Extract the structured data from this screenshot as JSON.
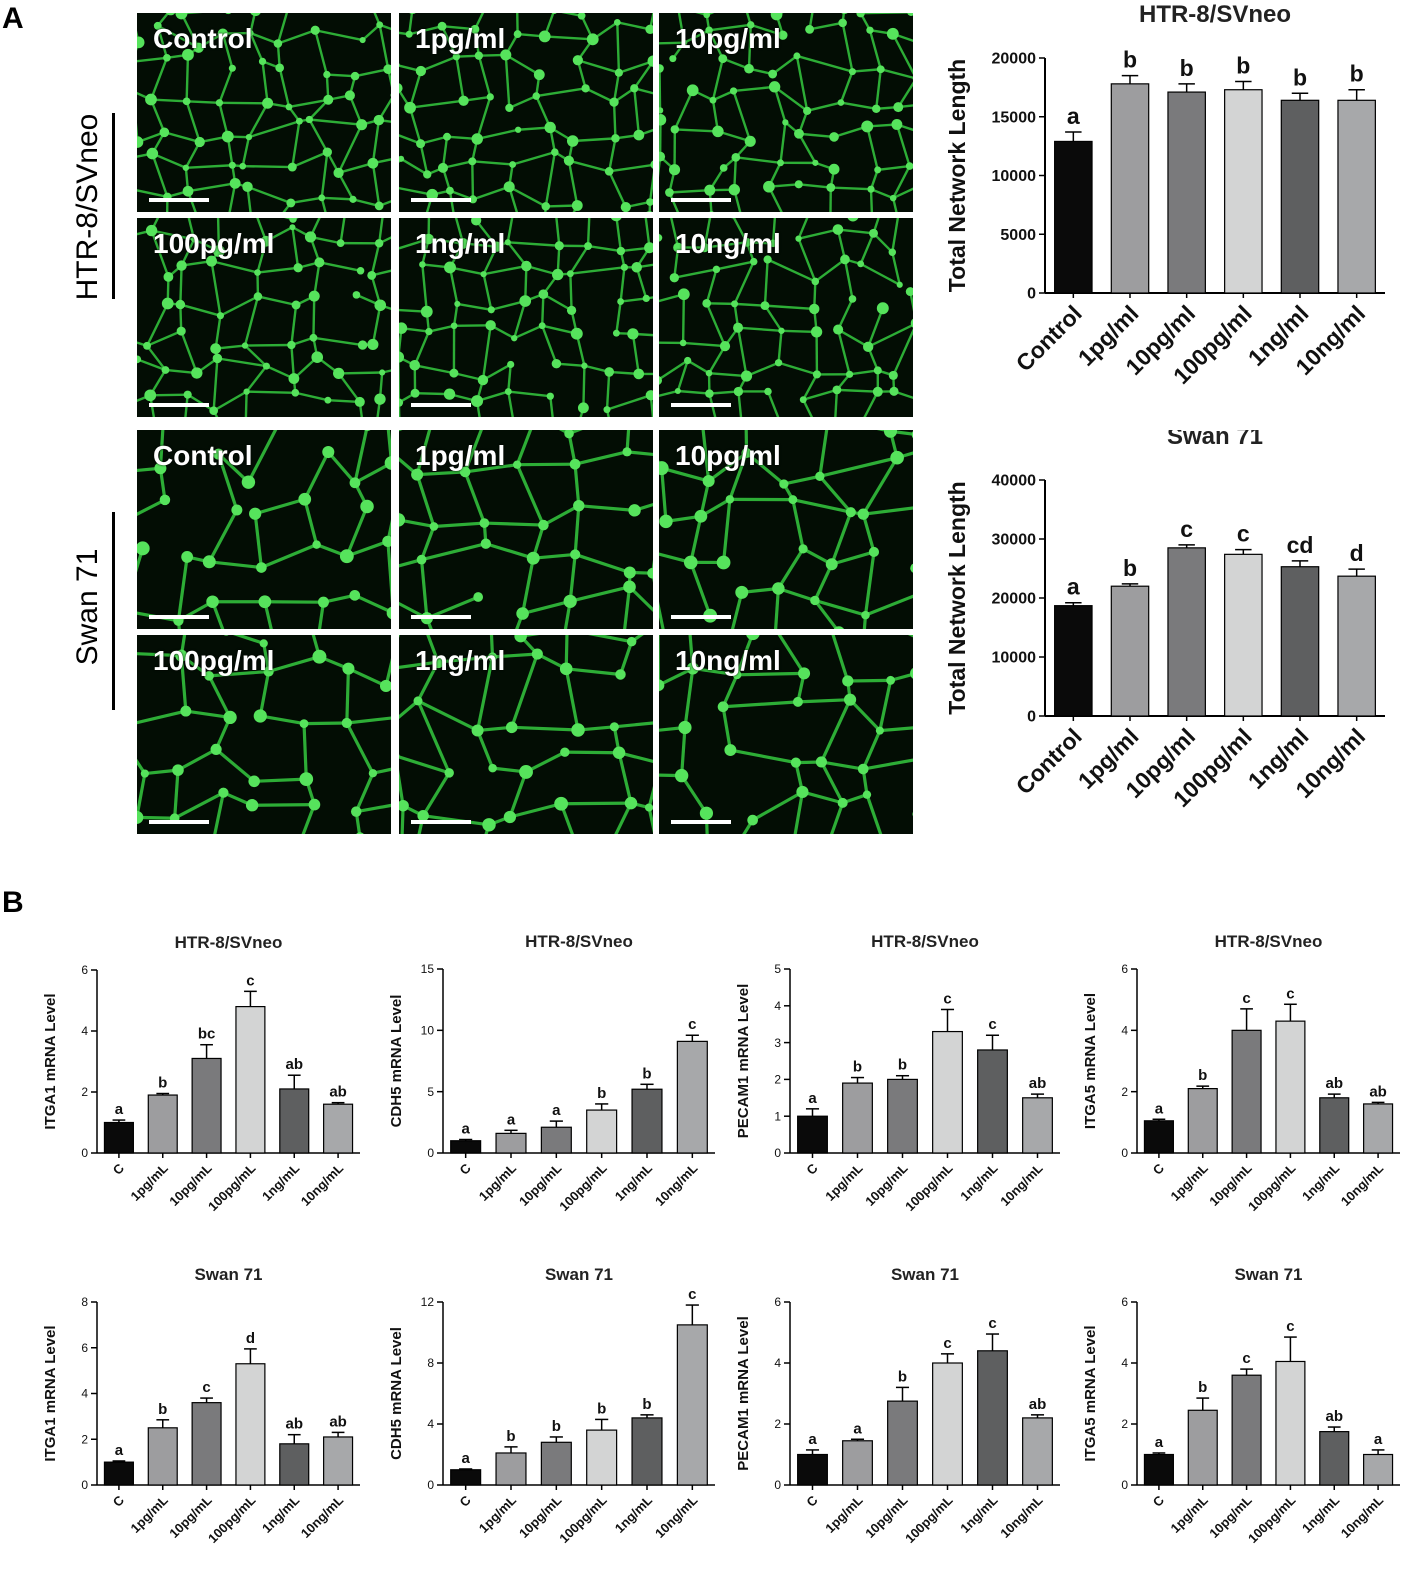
{
  "panels": {
    "a": "A",
    "b": "B"
  },
  "row_labels": {
    "htr": "HTR-8/SVneo",
    "swan": "Swan 71"
  },
  "micrographs": {
    "htr_row1": [
      "Control",
      "1pg/ml",
      "10pg/ml"
    ],
    "htr_row2": [
      "100pg/ml",
      "1ng/ml",
      "10ng/ml"
    ],
    "swan_row1": [
      "Control",
      "1pg/ml",
      "10pg/ml"
    ],
    "swan_row2": [
      "100pg/ml",
      "1ng/ml",
      "10ng/ml"
    ]
  },
  "colors": [
    "#0a0a0a",
    "#9d9d9f",
    "#7a7a7c",
    "#d3d4d4",
    "#5e5f60",
    "#a7a8aa"
  ],
  "chart_data": [
    {
      "id": "A-htr",
      "type": "bar",
      "title": "HTR-8/SVneo",
      "ylabel": "Total Network Length",
      "categories": [
        "Control",
        "1pg/ml",
        "10pg/ml",
        "100pg/ml",
        "1ng/ml",
        "10ng/ml"
      ],
      "values": [
        12900,
        17800,
        17100,
        17300,
        16400,
        16400
      ],
      "errors": [
        800,
        700,
        700,
        700,
        600,
        900
      ],
      "letters": [
        "a",
        "b",
        "b",
        "b",
        "b",
        "b"
      ],
      "ylim": [
        0,
        20000
      ],
      "yticks": [
        "0",
        "5000",
        "10000",
        "15000",
        "20000"
      ]
    },
    {
      "id": "A-swan",
      "type": "bar",
      "title": "Swan 71",
      "ylabel": "Total Network Length",
      "categories": [
        "Control",
        "1pg/ml",
        "10pg/ml",
        "100pg/ml",
        "1ng/ml",
        "10ng/ml"
      ],
      "values": [
        18700,
        22000,
        28500,
        27400,
        25300,
        23700
      ],
      "errors": [
        500,
        400,
        500,
        800,
        1000,
        1200
      ],
      "letters": [
        "a",
        "b",
        "c",
        "c",
        "cd",
        "d"
      ],
      "ylim": [
        0,
        40000
      ],
      "yticks": [
        "0",
        "10000",
        "20000",
        "30000",
        "40000"
      ]
    },
    {
      "id": "B-htr-itga1",
      "type": "bar",
      "title": "HTR-8/SVneo",
      "ylabel": "ITGA1 mRNA Level",
      "categories": [
        "C",
        "1pg/mL",
        "10pg/mL",
        "100pg/mL",
        "1ng/mL",
        "10ng/mL"
      ],
      "values": [
        1.0,
        1.9,
        3.1,
        4.8,
        2.1,
        1.6
      ],
      "errors": [
        0.08,
        0.05,
        0.45,
        0.5,
        0.45,
        0.05
      ],
      "letters": [
        "a",
        "b",
        "bc",
        "c",
        "ab",
        "ab"
      ],
      "ylim": [
        0,
        6
      ],
      "yticks": [
        "0",
        "2",
        "4",
        "6"
      ]
    },
    {
      "id": "B-htr-cdh5",
      "type": "bar",
      "title": "HTR-8/SVneo",
      "ylabel": "CDH5 mRNA Level",
      "categories": [
        "C",
        "1pg/mL",
        "10pg/mL",
        "100pg/mL",
        "1ng/mL",
        "10ng/mL"
      ],
      "values": [
        1.0,
        1.6,
        2.1,
        3.5,
        5.2,
        9.1
      ],
      "errors": [
        0.1,
        0.25,
        0.5,
        0.5,
        0.4,
        0.5
      ],
      "letters": [
        "a",
        "a",
        "a",
        "b",
        "b",
        "c"
      ],
      "ylim": [
        0,
        15
      ],
      "yticks": [
        "0",
        "5",
        "10",
        "15"
      ]
    },
    {
      "id": "B-htr-pecam1",
      "type": "bar",
      "title": "HTR-8/SVneo",
      "ylabel": "PECAM1 mRNA Level",
      "categories": [
        "C",
        "1pg/mL",
        "10pg/mL",
        "100pg/mL",
        "1ng/mL",
        "10ng/mL"
      ],
      "values": [
        1.0,
        1.9,
        2.0,
        3.3,
        2.8,
        1.5
      ],
      "errors": [
        0.2,
        0.15,
        0.1,
        0.6,
        0.4,
        0.1
      ],
      "letters": [
        "a",
        "b",
        "b",
        "c",
        "c",
        "ab"
      ],
      "ylim": [
        0,
        5
      ],
      "yticks": [
        "0",
        "1",
        "2",
        "3",
        "4",
        "5"
      ]
    },
    {
      "id": "B-htr-itga5",
      "type": "bar",
      "title": "HTR-8/SVneo",
      "ylabel": "ITGA5 mRNA Level",
      "categories": [
        "C",
        "1pg/mL",
        "10pg/mL",
        "100pg/mL",
        "1ng/mL",
        "10ng/mL"
      ],
      "values": [
        1.05,
        2.1,
        4.0,
        4.3,
        1.8,
        1.6
      ],
      "errors": [
        0.05,
        0.08,
        0.7,
        0.55,
        0.12,
        0.05
      ],
      "letters": [
        "a",
        "b",
        "c",
        "c",
        "ab",
        "ab"
      ],
      "ylim": [
        0,
        6
      ],
      "yticks": [
        "0",
        "2",
        "4",
        "6"
      ]
    },
    {
      "id": "B-swan-itga1",
      "type": "bar",
      "title": "Swan 71",
      "ylabel": "ITGA1 mRNA Level",
      "categories": [
        "C",
        "1pg/mL",
        "10pg/mL",
        "100pg/mL",
        "1ng/mL",
        "10ng/mL"
      ],
      "values": [
        1.0,
        2.5,
        3.6,
        5.3,
        1.8,
        2.1
      ],
      "errors": [
        0.05,
        0.35,
        0.2,
        0.65,
        0.4,
        0.2
      ],
      "letters": [
        "a",
        "b",
        "c",
        "d",
        "ab",
        "ab"
      ],
      "ylim": [
        0,
        8
      ],
      "yticks": [
        "0",
        "2",
        "4",
        "6",
        "8"
      ]
    },
    {
      "id": "B-swan-cdh5",
      "type": "bar",
      "title": "Swan 71",
      "ylabel": "CDH5 mRNA Level",
      "categories": [
        "C",
        "1pg/mL",
        "10pg/mL",
        "100pg/mL",
        "1ng/mL",
        "10ng/mL"
      ],
      "values": [
        1.0,
        2.1,
        2.8,
        3.6,
        4.4,
        10.5
      ],
      "errors": [
        0.05,
        0.4,
        0.35,
        0.7,
        0.2,
        1.3
      ],
      "letters": [
        "a",
        "b",
        "b",
        "b",
        "b",
        "c"
      ],
      "ylim": [
        0,
        12
      ],
      "yticks": [
        "0",
        "4",
        "8",
        "12"
      ]
    },
    {
      "id": "B-swan-pecam1",
      "type": "bar",
      "title": "Swan 71",
      "ylabel": "PECAM1 mRNA Level",
      "categories": [
        "C",
        "1pg/mL",
        "10pg/mL",
        "100pg/mL",
        "1ng/mL",
        "10ng/mL"
      ],
      "values": [
        1.0,
        1.45,
        2.75,
        4.0,
        4.4,
        2.2
      ],
      "errors": [
        0.15,
        0.05,
        0.45,
        0.3,
        0.55,
        0.1
      ],
      "letters": [
        "a",
        "a",
        "b",
        "c",
        "c",
        "ab"
      ],
      "ylim": [
        0,
        6
      ],
      "yticks": [
        "0",
        "2",
        "4",
        "6"
      ]
    },
    {
      "id": "B-swan-itga5",
      "type": "bar",
      "title": "Swan 71",
      "ylabel": "ITGA5 mRNA Level",
      "categories": [
        "C",
        "1pg/mL",
        "10pg/mL",
        "100pg/mL",
        "1ng/mL",
        "10ng/mL"
      ],
      "values": [
        1.0,
        2.45,
        3.6,
        4.05,
        1.75,
        1.0
      ],
      "errors": [
        0.05,
        0.4,
        0.2,
        0.8,
        0.15,
        0.15
      ],
      "letters": [
        "a",
        "b",
        "c",
        "c",
        "ab",
        "a"
      ],
      "ylim": [
        0,
        6
      ],
      "yticks": [
        "0",
        "2",
        "4",
        "6"
      ]
    }
  ]
}
